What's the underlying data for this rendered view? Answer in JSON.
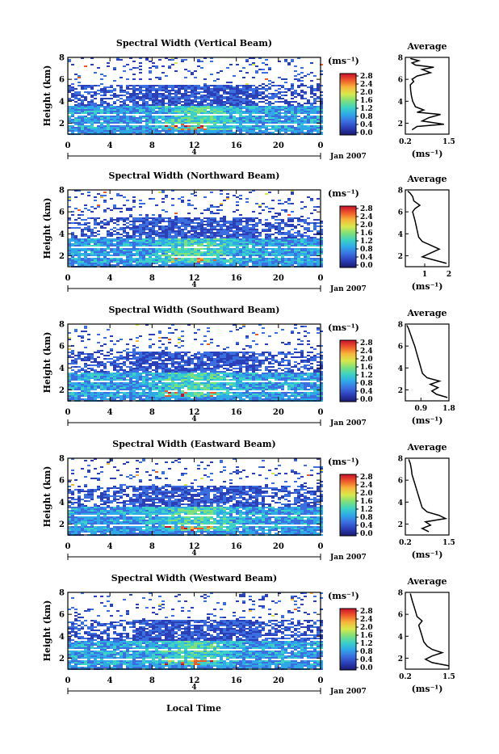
{
  "figure": {
    "xlabel": "Local Time",
    "date_label": "Jan 2007",
    "date_marker": "4",
    "colorbar_unit": "(ms⁻¹)",
    "colorbar_ticks": [
      "0.0",
      "0.4",
      "0.8",
      "1.2",
      "1.6",
      "2.0",
      "2.4",
      "2.8"
    ],
    "colors": {
      "scale": [
        "#1a1a6e",
        "#2b3fb6",
        "#3b6fe0",
        "#2fa8e8",
        "#3cd2c6",
        "#7de07a",
        "#d8e84a",
        "#f6b63a",
        "#ef5a2a",
        "#c8102e"
      ]
    }
  },
  "chart_data": [
    {
      "type": "heatmap",
      "title": "Spectral Width (Vertical Beam)",
      "ylabel": "Height (km)",
      "x_ticks": [
        "0",
        "4",
        "8",
        "12",
        "16",
        "20",
        "0"
      ],
      "y_ticks": [
        "2",
        "4",
        "6",
        "8"
      ],
      "xlim": [
        0,
        24
      ],
      "ylim": [
        1,
        8
      ],
      "zlim": [
        0.0,
        2.8
      ],
      "average": {
        "title": "Average",
        "xlabel": "(ms⁻¹)",
        "x_ticks": [
          "0.2",
          "1.5"
        ],
        "xlim": [
          0.2,
          1.5
        ],
        "y_ticks": [
          "2",
          "4",
          "6",
          "8"
        ],
        "ylim": [
          1,
          8
        ],
        "profile_x": [
          0.4,
          0.55,
          1.35,
          0.7,
          0.9,
          1.25,
          0.55,
          0.75,
          0.5,
          0.42,
          0.38,
          0.36,
          0.35,
          0.45,
          0.4,
          0.55,
          0.95,
          0.7,
          1.05,
          0.5,
          0.4,
          0.6,
          0.35
        ],
        "profile_y": [
          1.4,
          1.7,
          1.9,
          2.2,
          2.5,
          2.8,
          3.0,
          3.2,
          3.5,
          4.0,
          4.5,
          5.0,
          5.5,
          5.8,
          6.0,
          6.3,
          6.6,
          6.9,
          7.1,
          7.3,
          7.5,
          7.7,
          7.9
        ]
      }
    },
    {
      "type": "heatmap",
      "title": "Spectral Width (Northward Beam)",
      "ylabel": "Height (km)",
      "x_ticks": [
        "0",
        "4",
        "8",
        "12",
        "16",
        "20",
        "0"
      ],
      "y_ticks": [
        "2",
        "4",
        "6",
        "8"
      ],
      "xlim": [
        0,
        24
      ],
      "ylim": [
        1,
        8
      ],
      "zlim": [
        0.0,
        2.8
      ],
      "average": {
        "title": "Average",
        "xlabel": "(ms⁻¹)",
        "x_ticks": [
          "1",
          "2"
        ],
        "xlim": [
          0.2,
          2.0
        ],
        "y_ticks": [
          "2",
          "4",
          "6",
          "8"
        ],
        "ylim": [
          1,
          8
        ],
        "profile_x": [
          1.9,
          1.4,
          0.9,
          1.2,
          1.6,
          1.3,
          0.9,
          0.75,
          0.7,
          0.65,
          0.6,
          0.55,
          0.5,
          0.6,
          0.8,
          0.55,
          0.5,
          0.4,
          0.3
        ],
        "profile_y": [
          1.3,
          1.6,
          1.9,
          2.2,
          2.6,
          2.9,
          3.3,
          3.7,
          4.2,
          4.7,
          5.2,
          5.6,
          6.0,
          6.3,
          6.6,
          7.0,
          7.4,
          7.7,
          7.9
        ]
      }
    },
    {
      "type": "heatmap",
      "title": "Spectral Width (Southward Beam)",
      "ylabel": "Height (km)",
      "x_ticks": [
        "0",
        "4",
        "8",
        "12",
        "16",
        "20",
        "0"
      ],
      "y_ticks": [
        "2",
        "4",
        "6",
        "8"
      ],
      "xlim": [
        0,
        24
      ],
      "ylim": [
        1,
        8
      ],
      "zlim": [
        0.0,
        2.8
      ],
      "average": {
        "title": "Average",
        "xlabel": "(ms⁻¹)",
        "x_ticks": [
          "0.9",
          "1.8"
        ],
        "xlim": [
          0.4,
          1.8
        ],
        "y_ticks": [
          "2",
          "4",
          "6",
          "8"
        ],
        "ylim": [
          1,
          8
        ],
        "profile_x": [
          1.75,
          1.4,
          1.25,
          1.45,
          1.2,
          1.5,
          1.1,
          0.95,
          0.9,
          0.85,
          0.8,
          0.75,
          0.7,
          0.65,
          0.6,
          0.55,
          0.5,
          0.45
        ],
        "profile_y": [
          1.3,
          1.6,
          1.9,
          2.2,
          2.5,
          2.8,
          3.1,
          3.5,
          4.0,
          4.5,
          5.0,
          5.5,
          6.0,
          6.4,
          6.8,
          7.2,
          7.6,
          7.9
        ]
      }
    },
    {
      "type": "heatmap",
      "title": "Spectral Width (Eastward Beam)",
      "ylabel": "Height (km)",
      "x_ticks": [
        "0",
        "4",
        "8",
        "12",
        "16",
        "20",
        "0"
      ],
      "y_ticks": [
        "2",
        "4",
        "6",
        "8"
      ],
      "xlim": [
        0,
        24
      ],
      "ylim": [
        1,
        8
      ],
      "zlim": [
        0.0,
        2.8
      ],
      "average": {
        "title": "Average",
        "xlabel": "(ms⁻¹)",
        "x_ticks": [
          "0.2",
          "1.5"
        ],
        "xlim": [
          0.2,
          1.5
        ],
        "y_ticks": [
          "2",
          "4",
          "6",
          "8"
        ],
        "ylim": [
          1,
          8
        ],
        "profile_x": [
          0.9,
          0.7,
          0.95,
          0.8,
          1.4,
          1.2,
          0.85,
          0.7,
          0.65,
          0.6,
          0.55,
          0.5,
          0.45,
          0.4,
          0.38,
          0.35,
          0.3
        ],
        "profile_y": [
          1.3,
          1.6,
          1.9,
          2.2,
          2.5,
          2.8,
          3.1,
          3.5,
          4.0,
          4.5,
          5.0,
          5.5,
          6.0,
          6.5,
          7.0,
          7.5,
          7.9
        ]
      }
    },
    {
      "type": "heatmap",
      "title": "Spectral Width (Westward Beam)",
      "ylabel": "Height (km)",
      "x_ticks": [
        "0",
        "4",
        "8",
        "12",
        "16",
        "20",
        "0"
      ],
      "y_ticks": [
        "2",
        "4",
        "6",
        "8"
      ],
      "xlim": [
        0,
        24
      ],
      "ylim": [
        1,
        8
      ],
      "zlim": [
        0.0,
        2.8
      ],
      "average": {
        "title": "Average",
        "xlabel": "(ms⁻¹)",
        "x_ticks": [
          "0.2",
          "1.5"
        ],
        "xlim": [
          0.2,
          1.5
        ],
        "y_ticks": [
          "2",
          "4",
          "6",
          "8"
        ],
        "ylim": [
          1,
          8
        ],
        "profile_x": [
          1.5,
          1.0,
          0.8,
          1.0,
          1.3,
          1.0,
          0.85,
          0.75,
          0.7,
          0.65,
          0.6,
          0.7,
          0.55,
          0.5,
          0.45,
          0.4,
          0.35
        ],
        "profile_y": [
          1.3,
          1.6,
          1.9,
          2.2,
          2.5,
          2.8,
          3.1,
          3.5,
          4.0,
          4.5,
          5.0,
          5.4,
          5.8,
          6.3,
          6.8,
          7.3,
          7.9
        ]
      }
    }
  ]
}
